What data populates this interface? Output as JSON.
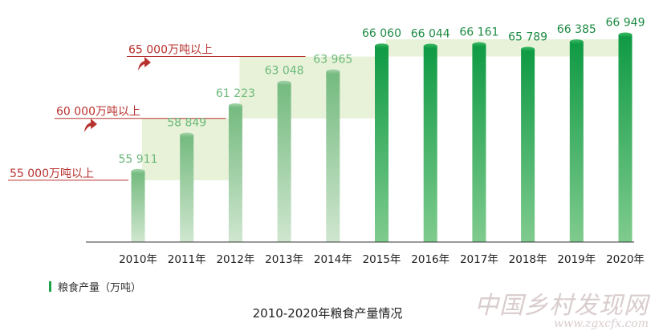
{
  "chart_data": {
    "type": "bar",
    "title": "2010-2020年粮食产量情况",
    "legend": "粮食产量（万吨）",
    "ylim": [
      50000,
      68000
    ],
    "categories": [
      "2010年",
      "2011年",
      "2012年",
      "2013年",
      "2014年",
      "2015年",
      "2016年",
      "2017年",
      "2018年",
      "2019年",
      "2020年"
    ],
    "values": [
      55911,
      58849,
      61223,
      63048,
      63965,
      66060,
      66044,
      66161,
      65789,
      66385,
      66949
    ],
    "value_labels": [
      "55 911",
      "58 849",
      "61 223",
      "63 048",
      "63 965",
      "66 060",
      "66 044",
      "66 161",
      "65 789",
      "66 385",
      "66 949"
    ],
    "thresholds": [
      {
        "value": 55000,
        "label": "55 000万吨以上",
        "from": 0,
        "to": 4
      },
      {
        "value": 60000,
        "label": "60 000万吨以上",
        "from": 2,
        "to": 4
      },
      {
        "value": 65000,
        "label": "65 000万吨以上",
        "from": 5,
        "to": 10
      }
    ],
    "colors": {
      "bar_light": "#7cbf86",
      "bar_dark": "#14a04a",
      "label_light": "#6cb97a",
      "label_dark": "#1d8b43",
      "threshold": "#b8322f",
      "band": "#e3f0d2",
      "axis": "#333333"
    }
  },
  "watermark": {
    "line1": "中国乡村发现网",
    "line2": "www.zgxcfx.com"
  }
}
